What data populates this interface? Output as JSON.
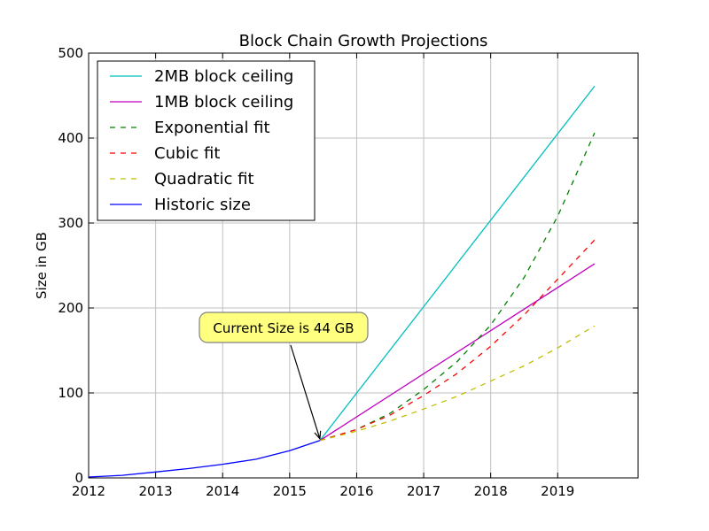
{
  "chart_data": {
    "type": "line",
    "title": "Block Chain Growth Projections",
    "xlabel": "",
    "ylabel": "Size in GB",
    "xlim": [
      2012,
      2020.2
    ],
    "ylim": [
      0,
      500
    ],
    "xticks": [
      "2012",
      "2013",
      "2014",
      "2015",
      "2016",
      "2017",
      "2018",
      "2019"
    ],
    "yticks": [
      "0",
      "100",
      "200",
      "300",
      "400",
      "500"
    ],
    "grid": true,
    "legend_position": "upper-left",
    "annotation": {
      "text": "Current Size is 44 GB",
      "x": 2015.45,
      "y": 44
    },
    "series": [
      {
        "name": "2MB block ceiling",
        "color": "#00bfbf",
        "style": "solid",
        "x": [
          2015.45,
          2019.55
        ],
        "y": [
          44,
          461
        ]
      },
      {
        "name": "1MB block ceiling",
        "color": "#bf00bf",
        "style": "solid",
        "x": [
          2015.45,
          2019.55
        ],
        "y": [
          44,
          252
        ]
      },
      {
        "name": "Exponential fit",
        "color": "#008000",
        "style": "dashed",
        "x": [
          2015.45,
          2016.0,
          2016.5,
          2017.0,
          2017.5,
          2018.0,
          2018.5,
          2019.0,
          2019.55
        ],
        "y": [
          44,
          57,
          76,
          104,
          137,
          180,
          236,
          308,
          406
        ]
      },
      {
        "name": "Cubic fit",
        "color": "#ff0000",
        "style": "dashed",
        "x": [
          2015.45,
          2016.0,
          2016.5,
          2017.0,
          2017.5,
          2018.0,
          2018.5,
          2019.0,
          2019.55
        ],
        "y": [
          44,
          57,
          74,
          97,
          123,
          155,
          192,
          234,
          280
        ]
      },
      {
        "name": "Quadratic fit",
        "color": "#bfbf00",
        "style": "dashed",
        "x": [
          2015.45,
          2016.0,
          2016.5,
          2017.0,
          2017.5,
          2018.0,
          2018.5,
          2019.0,
          2019.55
        ],
        "y": [
          44,
          55,
          67,
          81,
          96,
          114,
          132,
          153,
          179
        ]
      },
      {
        "name": "Historic size",
        "color": "#0000ff",
        "style": "solid",
        "x": [
          2012.0,
          2012.5,
          2013.0,
          2013.5,
          2014.0,
          2014.5,
          2015.0,
          2015.45
        ],
        "y": [
          1,
          3,
          7,
          11,
          16,
          22,
          32,
          44
        ]
      }
    ]
  }
}
